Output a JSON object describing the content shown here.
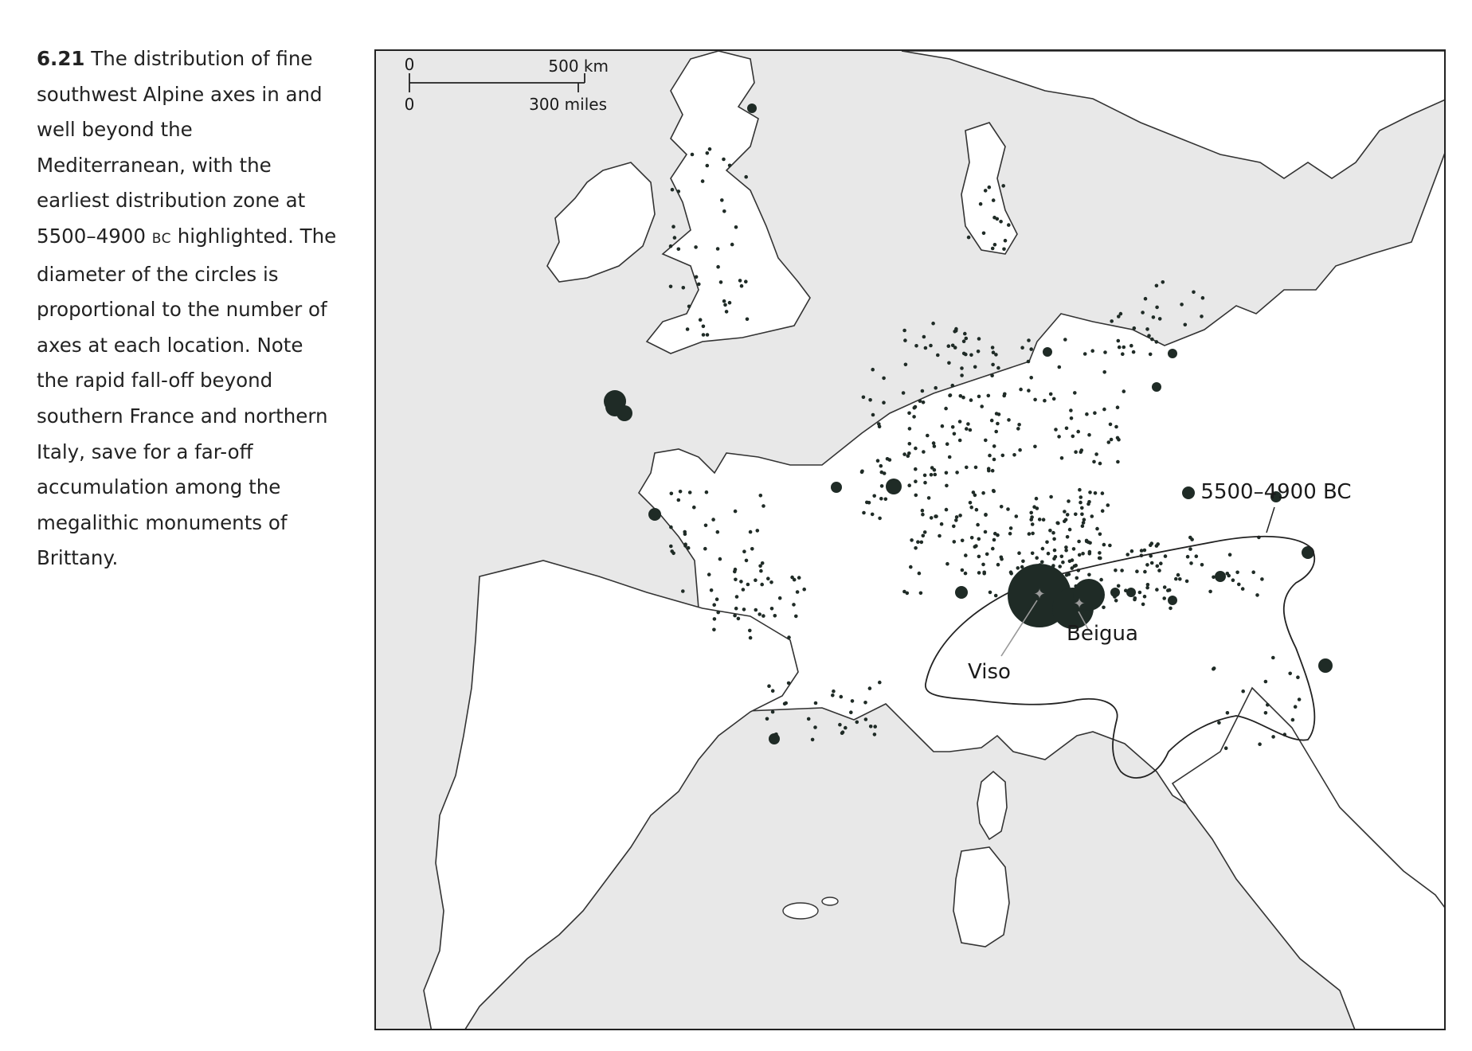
{
  "caption": {
    "figure_number": "6.21",
    "text_before_era": " The distribution of fine southwest Alpine axes in and well beyond the Mediterranean, with the earliest distribution zone at 5500–4900 ",
    "era": "BC",
    "text_after_era": " highlighted. The diameter of the circles is proportional to the number of axes at each location. Note the rapid fall-off beyond southern France and northern Italy, save for a far-off accumulation among the megalithic monuments of Brittany."
  },
  "scale_bar": {
    "km_zero": "0",
    "km_label": "500 km",
    "miles_zero": "0",
    "miles_label": "300 miles"
  },
  "zone": {
    "label": "5500–4900 BC"
  },
  "sources": [
    {
      "label": "Viso"
    },
    {
      "label": "Beigua"
    }
  ],
  "colors": {
    "land": "#ffffff",
    "sea": "#e8e8e8",
    "coast": "#333333",
    "site_marker": "#1f2b26",
    "source_star": "#9a9a9a",
    "frame": "#222222"
  },
  "legend_semantics": "circle diameter proportional to number of axes"
}
